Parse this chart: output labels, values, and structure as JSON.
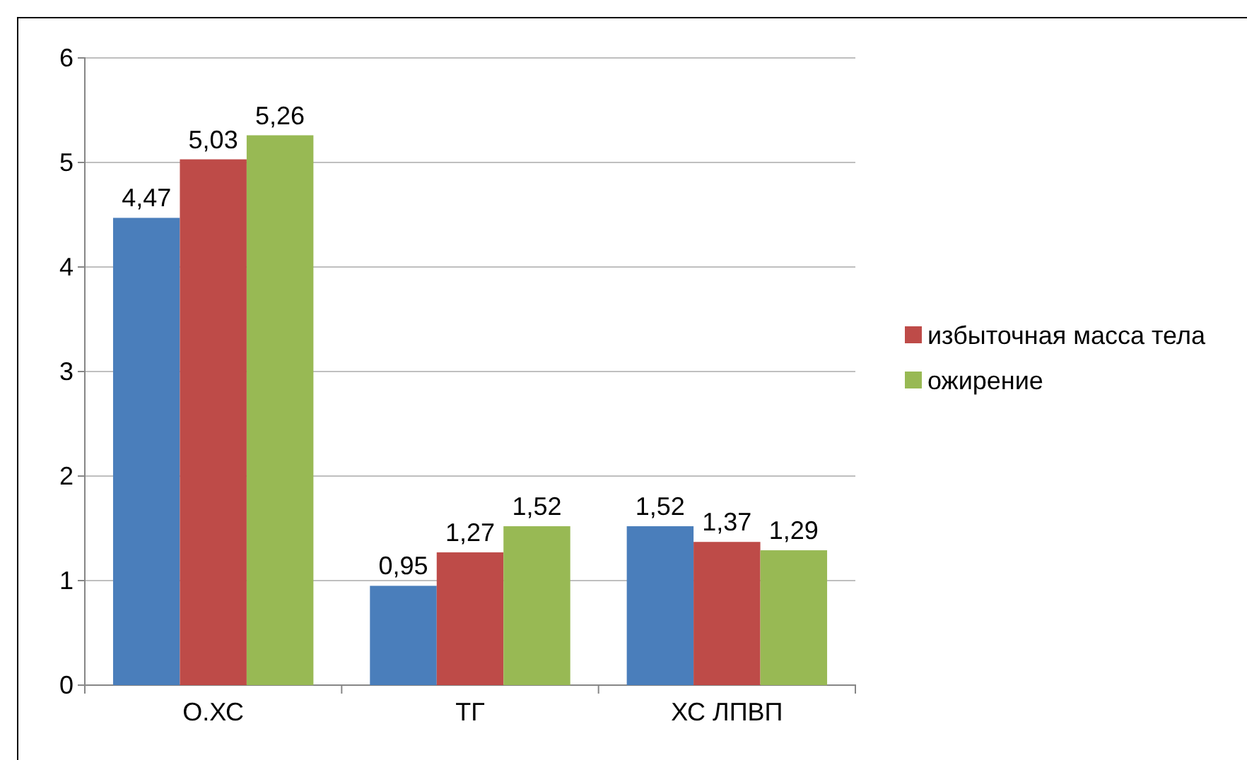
{
  "chart_data": {
    "type": "bar",
    "categories": [
      "О.ХС",
      "ТГ",
      "ХС ЛПВП"
    ],
    "series": [
      {
        "color": "#4a7ebb",
        "values": [
          4.47,
          0.95,
          1.52
        ],
        "value_labels": [
          "4,47",
          "0,95",
          "1,52"
        ]
      },
      {
        "name": "избыточная масса тела",
        "color": "#be4b48",
        "values": [
          5.03,
          1.27,
          1.37
        ],
        "value_labels": [
          "5,03",
          "1,27",
          "1,37"
        ]
      },
      {
        "name": "ожирение",
        "color": "#98b954",
        "values": [
          5.26,
          1.52,
          1.29
        ],
        "value_labels": [
          "5,26",
          "1,52",
          "1,29"
        ]
      }
    ],
    "ylim": [
      0,
      6
    ],
    "yticks": [
      0,
      1,
      2,
      3,
      4,
      5,
      6
    ],
    "grid": "y",
    "legend": "right"
  }
}
